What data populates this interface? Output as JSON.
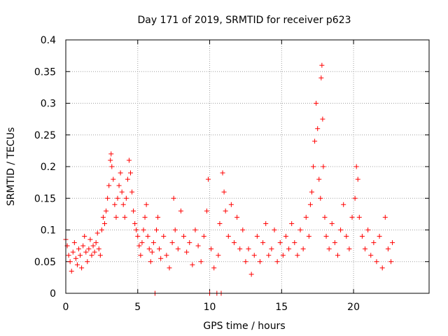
{
  "chart_data": {
    "type": "scatter",
    "title": "Day 171 of 2019, SRMTID for receiver p623",
    "xlabel": "GPS time / hours",
    "ylabel": "SRMTID / TECUs",
    "xlim": [
      0,
      25.25
    ],
    "ylim": [
      0,
      0.4
    ],
    "xticks": [
      0,
      5,
      10,
      15,
      20
    ],
    "yticks": [
      0,
      0.05,
      0.1,
      0.15,
      0.2,
      0.25,
      0.3,
      0.35,
      0.4
    ],
    "grid": true,
    "marker": "+",
    "color": "#ff0000",
    "series": [
      {
        "name": "SRMTID",
        "points": [
          [
            0.0,
            0.085
          ],
          [
            0.1,
            0.075
          ],
          [
            0.2,
            0.06
          ],
          [
            0.3,
            0.05
          ],
          [
            0.4,
            0.035
          ],
          [
            0.5,
            0.065
          ],
          [
            0.6,
            0.08
          ],
          [
            0.7,
            0.055
          ],
          [
            0.8,
            0.045
          ],
          [
            0.9,
            0.07
          ],
          [
            1.0,
            0.06
          ],
          [
            1.1,
            0.04
          ],
          [
            1.2,
            0.075
          ],
          [
            1.3,
            0.09
          ],
          [
            1.4,
            0.065
          ],
          [
            1.5,
            0.05
          ],
          [
            1.6,
            0.07
          ],
          [
            1.7,
            0.085
          ],
          [
            1.8,
            0.06
          ],
          [
            1.9,
            0.075
          ],
          [
            2.0,
            0.065
          ],
          [
            2.1,
            0.08
          ],
          [
            2.2,
            0.095
          ],
          [
            2.3,
            0.07
          ],
          [
            2.4,
            0.06
          ],
          [
            2.5,
            0.1
          ],
          [
            2.6,
            0.12
          ],
          [
            2.7,
            0.11
          ],
          [
            2.8,
            0.13
          ],
          [
            2.9,
            0.15
          ],
          [
            3.0,
            0.17
          ],
          [
            3.1,
            0.21
          ],
          [
            3.15,
            0.22
          ],
          [
            3.2,
            0.2
          ],
          [
            3.3,
            0.18
          ],
          [
            3.4,
            0.14
          ],
          [
            3.5,
            0.12
          ],
          [
            3.6,
            0.15
          ],
          [
            3.7,
            0.17
          ],
          [
            3.8,
            0.19
          ],
          [
            3.9,
            0.16
          ],
          [
            4.0,
            0.14
          ],
          [
            4.1,
            0.12
          ],
          [
            4.2,
            0.15
          ],
          [
            4.3,
            0.18
          ],
          [
            4.4,
            0.21
          ],
          [
            4.5,
            0.19
          ],
          [
            4.6,
            0.16
          ],
          [
            4.7,
            0.13
          ],
          [
            4.8,
            0.11
          ],
          [
            4.9,
            0.1
          ],
          [
            5.0,
            0.09
          ],
          [
            5.1,
            0.075
          ],
          [
            5.2,
            0.06
          ],
          [
            5.3,
            0.08
          ],
          [
            5.4,
            0.1
          ],
          [
            5.5,
            0.12
          ],
          [
            5.6,
            0.14
          ],
          [
            5.7,
            0.09
          ],
          [
            5.8,
            0.07
          ],
          [
            5.9,
            0.05
          ],
          [
            6.0,
            0.065
          ],
          [
            6.1,
            0.08
          ],
          [
            6.2,
            0.0
          ],
          [
            6.3,
            0.1
          ],
          [
            6.4,
            0.12
          ],
          [
            6.5,
            0.07
          ],
          [
            6.6,
            0.055
          ],
          [
            6.8,
            0.09
          ],
          [
            7.0,
            0.06
          ],
          [
            7.2,
            0.04
          ],
          [
            7.4,
            0.08
          ],
          [
            7.5,
            0.15
          ],
          [
            7.6,
            0.1
          ],
          [
            7.8,
            0.07
          ],
          [
            8.0,
            0.13
          ],
          [
            8.2,
            0.09
          ],
          [
            8.4,
            0.065
          ],
          [
            8.6,
            0.08
          ],
          [
            8.8,
            0.045
          ],
          [
            9.0,
            0.1
          ],
          [
            9.2,
            0.075
          ],
          [
            9.4,
            0.05
          ],
          [
            9.6,
            0.09
          ],
          [
            9.8,
            0.13
          ],
          [
            9.9,
            0.18
          ],
          [
            10.0,
            0.0
          ],
          [
            10.1,
            0.07
          ],
          [
            10.3,
            0.04
          ],
          [
            10.5,
            0.0
          ],
          [
            10.6,
            0.06
          ],
          [
            10.7,
            0.11
          ],
          [
            10.8,
            0.0
          ],
          [
            10.9,
            0.19
          ],
          [
            11.0,
            0.16
          ],
          [
            11.1,
            0.13
          ],
          [
            11.3,
            0.09
          ],
          [
            11.5,
            0.14
          ],
          [
            11.7,
            0.08
          ],
          [
            11.9,
            0.12
          ],
          [
            12.1,
            0.07
          ],
          [
            12.3,
            0.1
          ],
          [
            12.5,
            0.05
          ],
          [
            12.7,
            0.07
          ],
          [
            12.9,
            0.03
          ],
          [
            13.1,
            0.06
          ],
          [
            13.3,
            0.09
          ],
          [
            13.5,
            0.05
          ],
          [
            13.7,
            0.08
          ],
          [
            13.9,
            0.11
          ],
          [
            14.1,
            0.06
          ],
          [
            14.3,
            0.07
          ],
          [
            14.5,
            0.1
          ],
          [
            14.7,
            0.05
          ],
          [
            14.9,
            0.08
          ],
          [
            15.1,
            0.06
          ],
          [
            15.3,
            0.09
          ],
          [
            15.5,
            0.07
          ],
          [
            15.7,
            0.11
          ],
          [
            15.9,
            0.08
          ],
          [
            16.1,
            0.06
          ],
          [
            16.3,
            0.1
          ],
          [
            16.5,
            0.07
          ],
          [
            16.7,
            0.12
          ],
          [
            16.9,
            0.09
          ],
          [
            17.0,
            0.14
          ],
          [
            17.1,
            0.16
          ],
          [
            17.2,
            0.2
          ],
          [
            17.3,
            0.24
          ],
          [
            17.4,
            0.3
          ],
          [
            17.5,
            0.26
          ],
          [
            17.6,
            0.18
          ],
          [
            17.7,
            0.15
          ],
          [
            17.75,
            0.34
          ],
          [
            17.8,
            0.36
          ],
          [
            17.85,
            0.275
          ],
          [
            17.9,
            0.2
          ],
          [
            18.0,
            0.12
          ],
          [
            18.1,
            0.09
          ],
          [
            18.3,
            0.07
          ],
          [
            18.5,
            0.11
          ],
          [
            18.7,
            0.08
          ],
          [
            18.9,
            0.06
          ],
          [
            19.1,
            0.1
          ],
          [
            19.3,
            0.14
          ],
          [
            19.5,
            0.09
          ],
          [
            19.7,
            0.07
          ],
          [
            19.9,
            0.12
          ],
          [
            20.1,
            0.15
          ],
          [
            20.2,
            0.2
          ],
          [
            20.3,
            0.18
          ],
          [
            20.4,
            0.12
          ],
          [
            20.6,
            0.09
          ],
          [
            20.8,
            0.07
          ],
          [
            21.0,
            0.1
          ],
          [
            21.2,
            0.06
          ],
          [
            21.4,
            0.08
          ],
          [
            21.6,
            0.05
          ],
          [
            21.8,
            0.09
          ],
          [
            22.0,
            0.04
          ],
          [
            22.2,
            0.12
          ],
          [
            22.4,
            0.07
          ],
          [
            22.6,
            0.05
          ],
          [
            22.7,
            0.08
          ]
        ]
      }
    ]
  }
}
